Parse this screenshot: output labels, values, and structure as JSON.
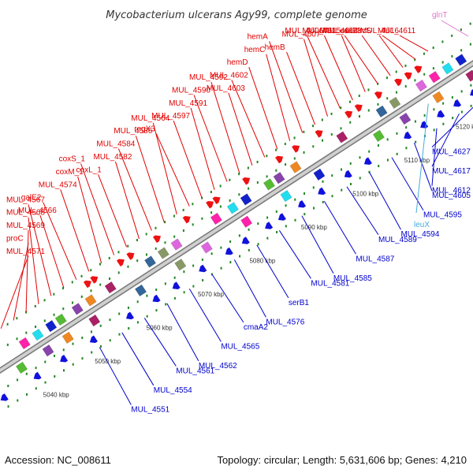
{
  "title": "Mycobacterium ulcerans Agy99, complete genome",
  "footer": {
    "accession": "Accession: NC_008611",
    "summary": "Topology: circular; Length: 5,631,606 bp; Genes: 4,210"
  },
  "colors": {
    "forward_label": "#e00000",
    "reverse_label": "#0000cc",
    "trna_label": "#44aadd",
    "rrna_label": "#dd77cc",
    "cds_forward": "#ee1111",
    "cds_reverse": "#1111dd",
    "backbone": "#aaaaaa",
    "tick": "#228822"
  },
  "kbp_ticks": [
    {
      "label": "5040 kbp"
    },
    {
      "label": "5050 kbp"
    },
    {
      "label": "5060 kbp"
    },
    {
      "label": "5070 kbp"
    },
    {
      "label": "5080 kbp"
    },
    {
      "label": "5090 kbp"
    },
    {
      "label": "5100 kbp"
    },
    {
      "label": "5110 kbp"
    },
    {
      "label": "5120 kbp"
    }
  ],
  "forward_labels": [
    "MUL_4571",
    "proC",
    "MUL_4569",
    "MUL_4568",
    "MUL_4567",
    "MUL_4566",
    "galE2",
    "MUL_4574",
    "coxM_1",
    "coxS_1",
    "coxL_1",
    "MUL_4582",
    "MUL_4584",
    "MUL_4586",
    "MUL_4564",
    "regX3",
    "MUL_4597",
    "MUL_4591",
    "MUL_4590",
    "MUL_4592",
    "MUL_4603",
    "MUL_4602",
    "hemD",
    "hemC",
    "hemA",
    "hemB",
    "MUL_4607",
    "MUL_4606",
    "MUL_4615",
    "MUL_4614",
    "MUL_4613",
    "esxP",
    "trcS",
    "MUL_4616",
    "MUL_4611"
  ],
  "reverse_labels": [
    "MUL_4627",
    "MUL_4617",
    "MUL_4612",
    "MUL_4605",
    "MUL_4595",
    "MUL_4594",
    "MUL_4589",
    "MUL_4587",
    "MUL_4585",
    "MUL_4581",
    "serB1",
    "MUL_4576",
    "cmaA2",
    "MUL_4565",
    "MUL_4562",
    "MUL_4561",
    "MUL_4554",
    "MUL_4551"
  ],
  "trna_labels": [
    "leuX"
  ],
  "rrna_labels": [
    "glnT"
  ]
}
